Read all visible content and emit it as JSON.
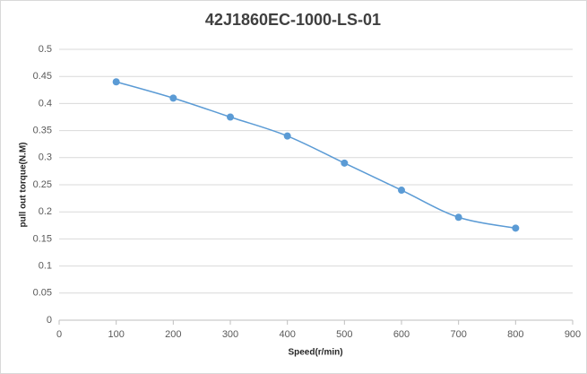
{
  "chart_data": {
    "type": "scatter-line",
    "title": "42J1860EC-1000-LS-01",
    "x_label": "Speed(r/min)",
    "y_label": "pull out torque(N.M)",
    "x": [
      100,
      200,
      300,
      400,
      500,
      600,
      700,
      800
    ],
    "values": [
      0.44,
      0.41,
      0.375,
      0.34,
      0.29,
      0.24,
      0.19,
      0.17
    ],
    "color": "#5b9bd5",
    "xlim": [
      0,
      900
    ],
    "xticks": [
      0,
      100,
      200,
      300,
      400,
      500,
      600,
      700,
      800,
      900
    ],
    "ylim": [
      0,
      0.5
    ],
    "yticks": [
      0,
      0.05,
      0.1,
      0.15,
      0.2,
      0.25,
      0.3,
      0.35,
      0.4,
      0.45,
      0.5
    ],
    "grid": true,
    "smooth": true
  }
}
